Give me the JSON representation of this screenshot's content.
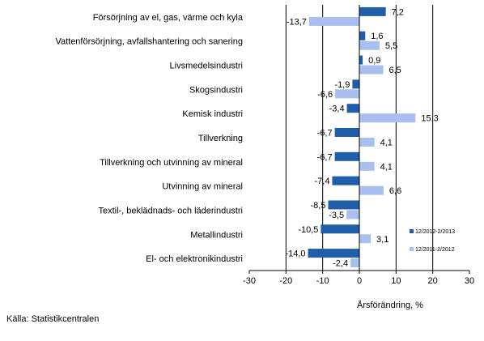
{
  "chart_data": {
    "type": "bar",
    "orientation": "horizontal",
    "categories": [
      "Försörjning av el, gas, värme och kyla",
      "Vattenförsörjning, avfallshantering och sanering",
      "Livsmedelsindustri",
      "Skogsindustri",
      "Kemisk industri",
      "Tillverkning",
      "Tillverkning och utvinning av mineral",
      "Utvinning av mineral",
      "Textil-, beklädnads- och läderindustri",
      "Metallindustri",
      "El- och elektronikindustri"
    ],
    "series": [
      {
        "name": "12/2012-2/2013",
        "color": "#1f5ea8",
        "values": [
          7.2,
          1.6,
          0.9,
          -1.9,
          -3.4,
          -6.7,
          -6.7,
          -7.4,
          -8.5,
          -10.5,
          -14.0
        ],
        "labels": [
          "7,2",
          "1,6",
          "0,9",
          "-1,9",
          "-3,4",
          "-6,7",
          "-6,7",
          "-7,4",
          "-8,5",
          "-10,5",
          "-14,0"
        ]
      },
      {
        "name": "12/2011-2/2012",
        "color": "#a9bff0",
        "values": [
          -13.7,
          5.5,
          6.5,
          -6.6,
          15.3,
          4.1,
          4.1,
          6.6,
          -3.5,
          3.1,
          -2.4
        ],
        "labels": [
          "-13,7",
          "5,5",
          "6,5",
          "-6,6",
          "15,3",
          "4,1",
          "4,1",
          "6,6",
          "-3,5",
          "3,1",
          "-2,4"
        ]
      }
    ],
    "xlim": [
      -30,
      30
    ],
    "xticks": [
      -30,
      -20,
      -10,
      0,
      10,
      20,
      30
    ],
    "xtick_labels": [
      "-30",
      "-20",
      "-10",
      "0",
      "10",
      "20",
      "30"
    ],
    "xlabel": "Årsförändring, %",
    "grid": "vertical",
    "legend_position": "right"
  },
  "source": "Källa: Statistikcentralen"
}
